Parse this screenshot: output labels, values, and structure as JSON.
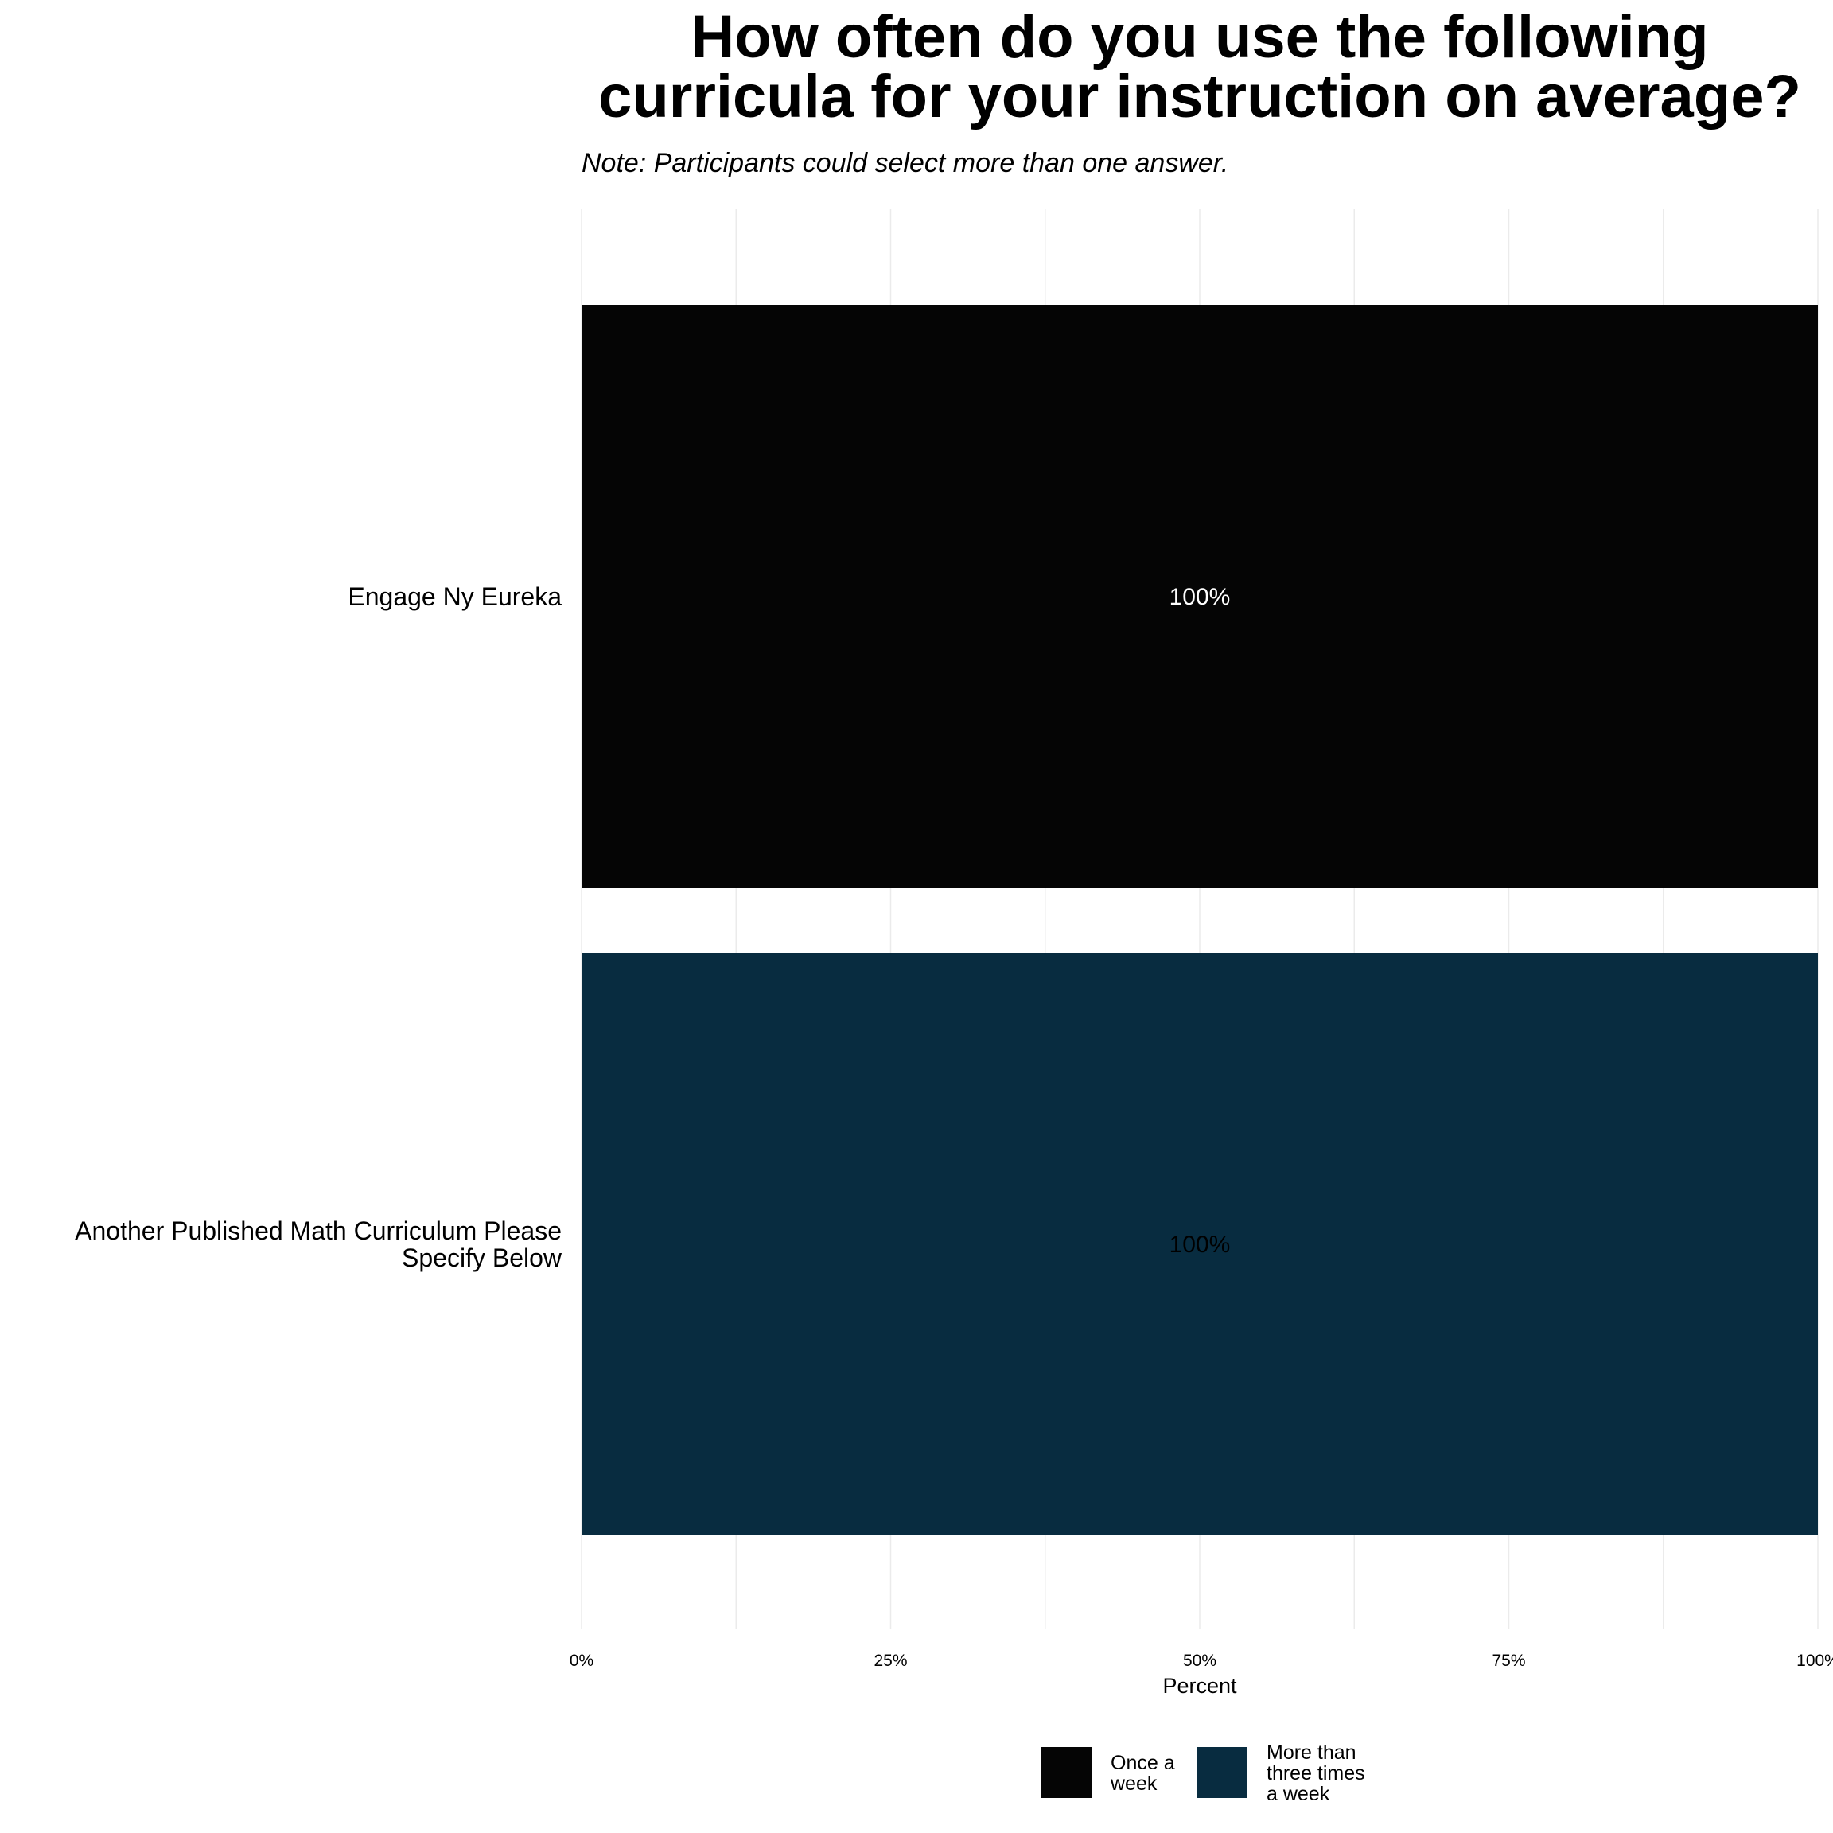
{
  "chart_data": {
    "type": "bar",
    "orientation": "horizontal",
    "stacked": true,
    "title": "How often do you use the following curricula for your instruction on average?",
    "title_lines": [
      "How often do you use the following",
      "curricula for your instruction on average?"
    ],
    "subtitle": "Note: Participants could select more than one answer.",
    "xlabel": "Percent",
    "ylabel": "",
    "xlim": [
      0,
      100
    ],
    "x_ticks": [
      0,
      25,
      50,
      75,
      100
    ],
    "x_tick_labels": [
      "0%",
      "25%",
      "50%",
      "75%",
      "100%"
    ],
    "grid": true,
    "legend_position": "bottom",
    "categories": [
      "Engage Ny Eureka",
      "Another Published Math Curriculum Please Specify Below"
    ],
    "category_label_lines": [
      [
        "Engage Ny Eureka"
      ],
      [
        "Another Published Math Curriculum Please",
        "Specify Below"
      ]
    ],
    "series": [
      {
        "name": "Once a week",
        "legend_lines": [
          "Once a",
          "week"
        ],
        "color": "#050505",
        "label_color": "#ffffff",
        "values": [
          100,
          0
        ]
      },
      {
        "name": "More than three times a week",
        "legend_lines": [
          "More than",
          "three times",
          "a week"
        ],
        "color": "#082c40",
        "label_color": "#000000",
        "values": [
          0,
          100
        ]
      }
    ]
  }
}
